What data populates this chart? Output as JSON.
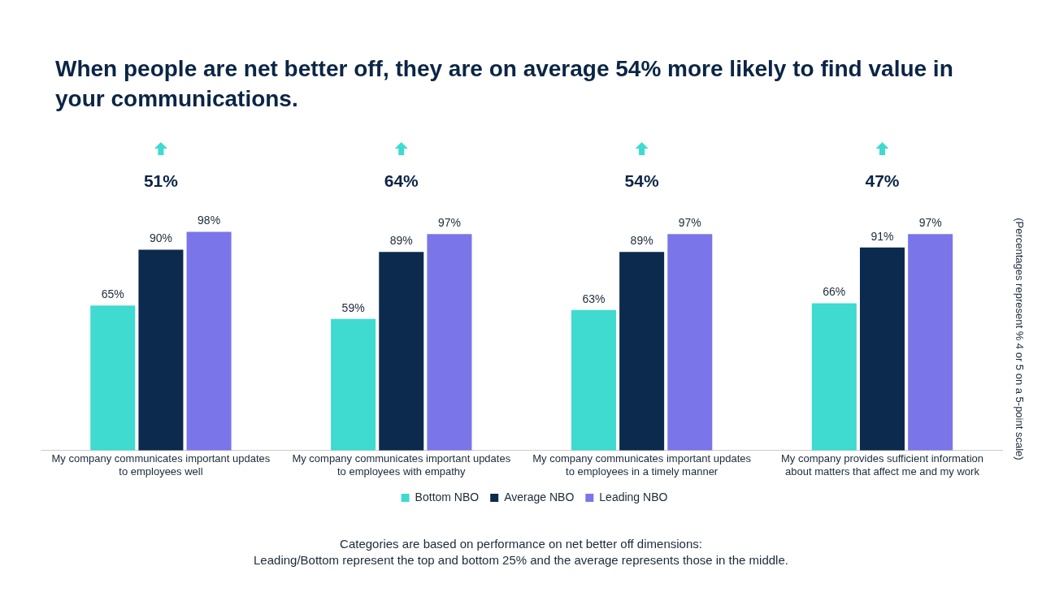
{
  "chart_data": {
    "type": "bar",
    "title": "When people are net better off, they are on average 54% more likely to find value in your communications.",
    "categories": [
      "My company communicates important updates to employees well",
      "My company communicates important updates to employees with empathy",
      "My company communicates important updates to employees in a timely manner",
      "My company provides sufficient information about matters that affect me and my work"
    ],
    "series": [
      {
        "name": "Bottom NBO",
        "color": "#3fdad0",
        "values": [
          65,
          59,
          63,
          66
        ],
        "value_labels": [
          "65%",
          "59%",
          "63%",
          "66%"
        ]
      },
      {
        "name": "Average NBO",
        "color": "#0c2a4e",
        "values": [
          90,
          89,
          89,
          91
        ],
        "value_labels": [
          "90%",
          "89%",
          "89%",
          "91%"
        ]
      },
      {
        "name": "Leading NBO",
        "color": "#7b75ea",
        "values": [
          98,
          97,
          97,
          97
        ],
        "value_labels": [
          "98%",
          "97%",
          "97%",
          "97%"
        ]
      }
    ],
    "y2label": "(Percentages represent % 4 or 5 on a 5-point scale)",
    "tick_labels": "x",
    "grid": false,
    "legend": "bottom",
    "annotations": [
      "51%",
      "64%",
      "54%",
      "47%",
      "Categories are based on performance on net better off dimensions:",
      "Leading/Bottom represent the top and bottom 25% and the average represents those in the middle."
    ]
  }
}
